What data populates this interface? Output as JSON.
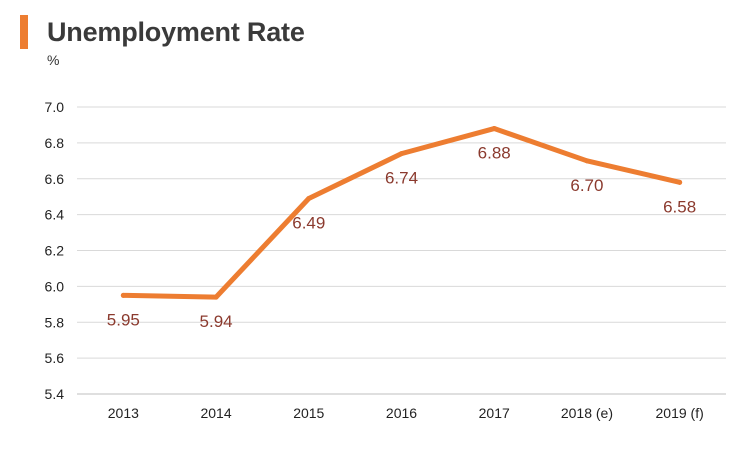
{
  "header": {
    "title": "Unemployment Rate",
    "unit": "%"
  },
  "colors": {
    "accent": "#ED7D31",
    "line": "#ED7D31",
    "label": "#8B3A2E",
    "grid": "#D9D9D9"
  },
  "chart_data": {
    "type": "line",
    "title": "Unemployment Rate",
    "ylabel": "%",
    "xlabel": "",
    "categories": [
      "2013",
      "2014",
      "2015",
      "2016",
      "2017",
      "2018 (e)",
      "2019 (f)"
    ],
    "series": [
      {
        "values": [
          5.95,
          5.94,
          6.49,
          6.74,
          6.88,
          6.7,
          6.58
        ]
      }
    ],
    "data_labels": [
      "5.95",
      "5.94",
      "6.49",
      "6.74",
      "6.88",
      "6.70",
      "6.58"
    ],
    "ylim": [
      5.4,
      7.0
    ],
    "yticks": [
      "5.4",
      "5.6",
      "5.8",
      "6.0",
      "6.2",
      "6.4",
      "6.6",
      "6.8",
      "7.0"
    ],
    "grid": true,
    "legend": "none"
  }
}
